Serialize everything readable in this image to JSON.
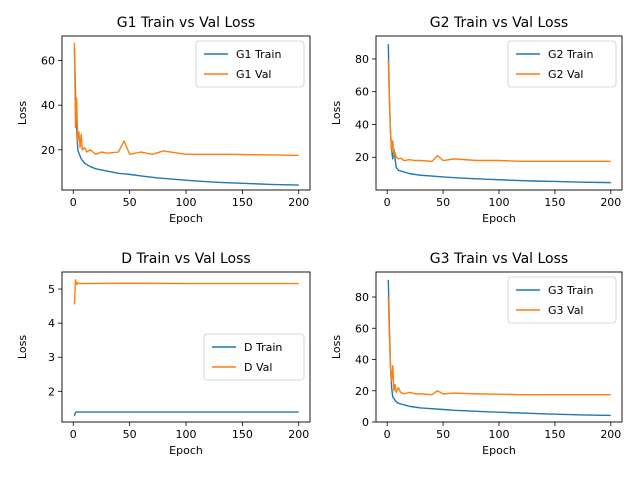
{
  "figure": {
    "background": "#ffffff"
  },
  "colors": {
    "train": "#1f77b4",
    "val": "#ff7f0e"
  },
  "chart_data": [
    {
      "type": "line",
      "title": "G1 Train vs Val Loss",
      "xlabel": "Epoch",
      "ylabel": "Loss",
      "xlim": [
        -10,
        210
      ],
      "ylim": [
        2,
        71
      ],
      "xticks": [
        0,
        50,
        100,
        150,
        200
      ],
      "yticks": [
        20,
        40,
        60
      ],
      "legend": "upper-right",
      "grid": false,
      "series": [
        {
          "name": "G1 Train",
          "color": "#1f77b4",
          "x": [
            1,
            2,
            3,
            4,
            5,
            7,
            10,
            15,
            20,
            30,
            40,
            50,
            60,
            75,
            90,
            110,
            130,
            150,
            175,
            200
          ],
          "y": [
            66.0,
            45.0,
            30.0,
            20.0,
            18.5,
            16.0,
            14.0,
            12.5,
            11.5,
            10.5,
            9.5,
            9.0,
            8.3,
            7.4,
            6.8,
            6.0,
            5.4,
            5.0,
            4.5,
            4.2
          ]
        },
        {
          "name": "G1 Val",
          "color": "#ff7f0e",
          "x": [
            1,
            2,
            3,
            4,
            5,
            6,
            7,
            8,
            10,
            12,
            15,
            20,
            25,
            30,
            40,
            45,
            50,
            60,
            70,
            80,
            100,
            120,
            140,
            160,
            180,
            200
          ],
          "y": [
            68.0,
            30.0,
            43.0,
            24.0,
            28.0,
            21.0,
            27.0,
            20.0,
            21.0,
            19.0,
            20.0,
            18.0,
            19.0,
            18.5,
            19.0,
            24.0,
            18.0,
            19.0,
            18.0,
            19.5,
            18.0,
            18.0,
            18.0,
            17.8,
            17.7,
            17.5
          ]
        }
      ]
    },
    {
      "type": "line",
      "title": "G2 Train vs Val Loss",
      "xlabel": "Epoch",
      "ylabel": "Loss",
      "xlim": [
        -10,
        210
      ],
      "ylim": [
        0,
        94
      ],
      "xticks": [
        0,
        50,
        100,
        150,
        200
      ],
      "yticks": [
        20,
        40,
        60,
        80
      ],
      "legend": "upper-right",
      "grid": false,
      "series": [
        {
          "name": "G2 Train",
          "color": "#1f77b4",
          "x": [
            1,
            2,
            3,
            4,
            5,
            6,
            8,
            10,
            15,
            20,
            30,
            40,
            50,
            60,
            75,
            90,
            110,
            130,
            150,
            175,
            200
          ],
          "y": [
            89.0,
            55.0,
            35.0,
            24.0,
            19.0,
            25.0,
            14.0,
            12.0,
            11.0,
            10.0,
            9.0,
            8.5,
            8.0,
            7.5,
            7.0,
            6.5,
            6.0,
            5.5,
            5.2,
            4.8,
            4.5
          ]
        },
        {
          "name": "G2 Val",
          "color": "#ff7f0e",
          "x": [
            1,
            2,
            3,
            4,
            5,
            6,
            7,
            8,
            10,
            12,
            15,
            20,
            25,
            30,
            40,
            45,
            50,
            60,
            80,
            100,
            120,
            150,
            180,
            200
          ],
          "y": [
            79.0,
            55.0,
            35.0,
            24.0,
            30.0,
            21.0,
            23.0,
            20.0,
            19.0,
            19.5,
            18.0,
            18.5,
            18.0,
            18.0,
            17.5,
            21.0,
            18.0,
            19.0,
            18.0,
            18.0,
            17.5,
            17.5,
            17.5,
            17.5
          ]
        }
      ]
    },
    {
      "type": "line",
      "title": "D Train vs Val Loss",
      "xlabel": "Epoch",
      "ylabel": "Loss",
      "xlim": [
        -10,
        210
      ],
      "ylim": [
        1.1,
        5.5
      ],
      "xticks": [
        0,
        50,
        100,
        150,
        200
      ],
      "yticks": [
        2,
        3,
        4,
        5
      ],
      "legend": "center-right",
      "grid": false,
      "series": [
        {
          "name": "D Train",
          "color": "#1f77b4",
          "x": [
            1,
            2,
            3,
            200
          ],
          "y": [
            1.28,
            1.38,
            1.39,
            1.39
          ]
        },
        {
          "name": "D Val",
          "color": "#ff7f0e",
          "x": [
            1,
            2,
            3,
            4,
            5,
            50,
            100,
            150,
            200
          ],
          "y": [
            4.55,
            5.27,
            5.13,
            5.18,
            5.16,
            5.17,
            5.16,
            5.16,
            5.16
          ]
        }
      ]
    },
    {
      "type": "line",
      "title": "G3 Train vs Val Loss",
      "xlabel": "Epoch",
      "ylabel": "Loss",
      "xlim": [
        -10,
        210
      ],
      "ylim": [
        0,
        96
      ],
      "xticks": [
        0,
        50,
        100,
        150,
        200
      ],
      "yticks": [
        0,
        20,
        40,
        60,
        80
      ],
      "legend": "upper-right",
      "grid": false,
      "series": [
        {
          "name": "G3 Train",
          "color": "#1f77b4",
          "x": [
            1,
            2,
            3,
            4,
            5,
            6,
            8,
            10,
            15,
            20,
            30,
            40,
            50,
            60,
            75,
            90,
            110,
            130,
            150,
            175,
            200
          ],
          "y": [
            91.0,
            60.0,
            35.0,
            22.0,
            16.0,
            15.0,
            13.0,
            12.0,
            11.0,
            10.0,
            9.0,
            8.5,
            8.0,
            7.5,
            7.0,
            6.5,
            6.0,
            5.5,
            5.0,
            4.5,
            4.2
          ]
        },
        {
          "name": "G3 Val",
          "color": "#ff7f0e",
          "x": [
            1,
            2,
            3,
            4,
            5,
            6,
            7,
            8,
            10,
            12,
            15,
            20,
            25,
            30,
            40,
            45,
            50,
            60,
            80,
            100,
            120,
            150,
            180,
            200
          ],
          "y": [
            80.0,
            55.0,
            35.0,
            26.0,
            36.0,
            20.0,
            24.0,
            19.0,
            22.0,
            19.0,
            18.0,
            19.0,
            18.0,
            18.0,
            17.5,
            20.0,
            18.0,
            18.5,
            18.0,
            17.8,
            17.5,
            17.5,
            17.5,
            17.5
          ]
        }
      ]
    }
  ]
}
